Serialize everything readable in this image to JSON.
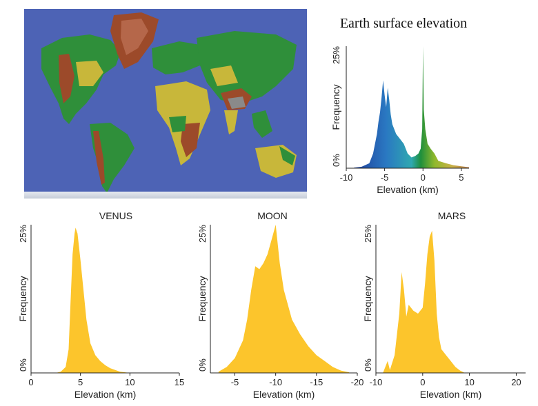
{
  "chart_data": [
    {
      "id": "earth",
      "type": "area",
      "title": "Earth surface elevation",
      "xlabel": "Elevation (km)",
      "ylabel": "Frequency",
      "xlim": [
        -10,
        6
      ],
      "ylim": [
        0,
        25
      ],
      "x_ticks": [
        -10,
        -5,
        0,
        5
      ],
      "y_tick_labels": [
        "0%",
        "25%"
      ],
      "gradient_colors": [
        "#1f3f9a",
        "#2a78c2",
        "#2fa8b0",
        "#1f8f3c",
        "#8fb82c",
        "#c9b248",
        "#b97a48"
      ],
      "series": [
        {
          "x": [
            -9,
            -8,
            -7,
            -6.5,
            -6,
            -5.8,
            -5.6,
            -5.4,
            -5.2,
            -5,
            -4.8,
            -4.6,
            -4.4,
            -4.2,
            -4,
            -3.5,
            -3,
            -2.5,
            -2,
            -1.5,
            -1,
            -0.6,
            -0.3,
            -0.1,
            0,
            0.1,
            0.3,
            0.6,
            1,
            1.5,
            2,
            3,
            4,
            5,
            6
          ],
          "y": [
            0.1,
            0.3,
            1.0,
            3.0,
            7.0,
            9.5,
            11.5,
            14.5,
            18.0,
            15.0,
            12.5,
            16.5,
            14.0,
            11.0,
            9.0,
            7.0,
            6.0,
            5.0,
            3.0,
            2.2,
            2.5,
            3.0,
            4.0,
            8.0,
            25.0,
            12.0,
            8.0,
            5.0,
            4.0,
            3.0,
            1.5,
            1.0,
            0.6,
            0.4,
            0.2
          ]
        }
      ]
    },
    {
      "id": "venus",
      "type": "area",
      "title": "VENUS",
      "xlabel": "Elevation (km)",
      "ylabel": "Frequency",
      "xlim": [
        0,
        15
      ],
      "ylim": [
        0,
        25
      ],
      "x_ticks": [
        0,
        5,
        10,
        15
      ],
      "y_tick_labels": [
        "0%",
        "25%"
      ],
      "color": "#fcc52c",
      "series": [
        {
          "x": [
            2.5,
            3,
            3.5,
            3.8,
            4,
            4.2,
            4.4,
            4.5,
            4.7,
            5,
            5.3,
            5.6,
            6,
            6.5,
            7,
            7.5,
            8,
            9,
            10
          ],
          "y": [
            0,
            0.2,
            1.0,
            4.0,
            12.0,
            20.0,
            23.5,
            24.5,
            23.5,
            19.0,
            14.0,
            9.0,
            5.0,
            3.0,
            2.0,
            1.3,
            0.8,
            0.2,
            0
          ]
        }
      ]
    },
    {
      "id": "moon",
      "type": "area",
      "title": "MOON",
      "xlabel": "Elevation (km)",
      "ylabel": "Frequency",
      "xlim": [
        -2,
        -20
      ],
      "ylim": [
        0,
        25
      ],
      "x_ticks": [
        -5,
        -10,
        -15,
        -20
      ],
      "y_tick_labels": [
        "0%",
        "25%"
      ],
      "color": "#fcc52c",
      "series": [
        {
          "x": [
            -3,
            -4,
            -5,
            -6,
            -6.5,
            -7,
            -7.5,
            -8,
            -8.5,
            -9,
            -9.5,
            -10,
            -10.5,
            -11,
            -11.5,
            -12,
            -13,
            -14,
            -15,
            -16,
            -17,
            -18,
            -19
          ],
          "y": [
            0.2,
            1.0,
            2.5,
            5.5,
            9.0,
            14.0,
            18.0,
            17.5,
            18.5,
            20.0,
            22.5,
            25.0,
            18.5,
            14.0,
            11.5,
            9.0,
            6.5,
            4.5,
            3.0,
            2.0,
            1.0,
            0.4,
            0.1
          ]
        }
      ]
    },
    {
      "id": "mars",
      "type": "area",
      "title": "MARS",
      "xlabel": "Elevation (km)",
      "ylabel": "Frequency",
      "xlim": [
        -10,
        22
      ],
      "ylim": [
        0,
        25
      ],
      "x_ticks": [
        -10,
        0,
        10,
        20
      ],
      "y_tick_labels": [
        "0%",
        "25%"
      ],
      "color": "#fcc52c",
      "series": [
        {
          "x": [
            -8.5,
            -7.5,
            -7,
            -6,
            -5,
            -4.5,
            -4,
            -3.5,
            -3,
            -2,
            -1,
            0,
            0.5,
            1,
            1.5,
            2,
            2.5,
            3,
            3.5,
            4,
            5,
            6,
            7,
            8,
            9
          ],
          "y": [
            0,
            2.0,
            0.5,
            3.0,
            10.0,
            17.0,
            14.0,
            9.5,
            11.5,
            10.5,
            10.0,
            11.0,
            15.0,
            20.0,
            23.0,
            24.0,
            19.0,
            10.0,
            6.0,
            4.0,
            3.0,
            2.0,
            1.0,
            0.4,
            0
          ]
        }
      ]
    }
  ],
  "map": {
    "ocean_color": "#4d63b5",
    "land_low_color": "#2f8f3a",
    "land_mid_color": "#c8b73a",
    "land_high_color": "#9c4a2a",
    "ice_color": "#d7dde6"
  }
}
